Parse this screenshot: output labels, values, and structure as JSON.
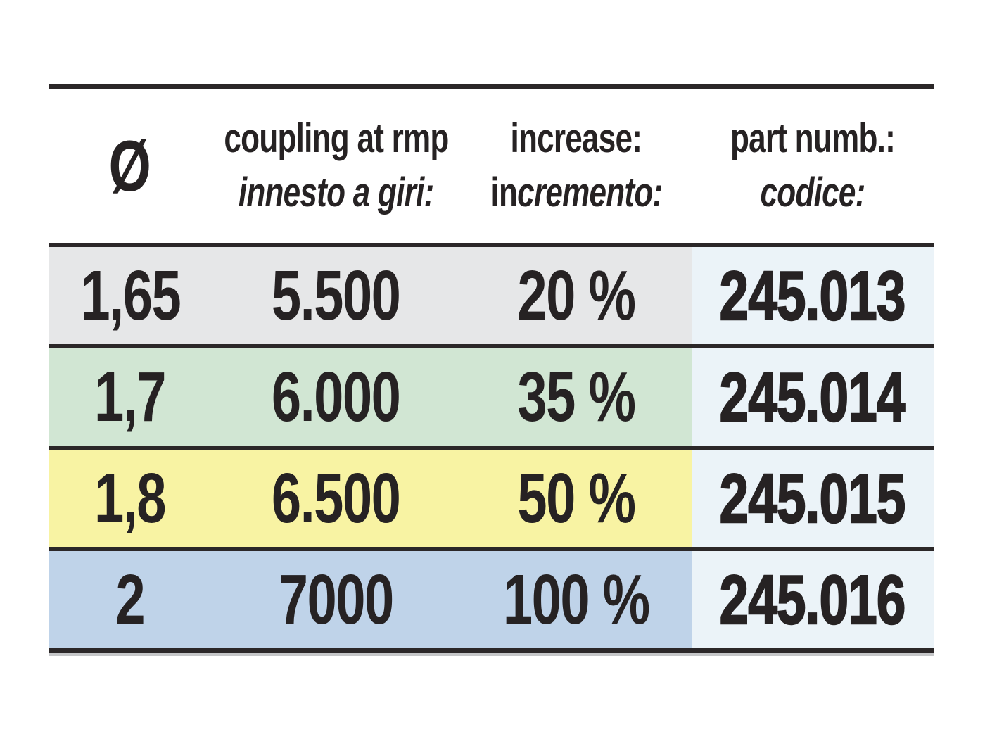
{
  "table": {
    "header": {
      "diameter_symbol": "Ø",
      "coupling_en": "coupling at rmp",
      "coupling_it": "innesto a giri:",
      "increase_en": "increase:",
      "increase_it_prefix": "in",
      "increase_it_rest": "cremento:",
      "partnumber_en": "part numb.:",
      "partnumber_it": "codice:"
    },
    "rows": [
      {
        "diameter": "1,65",
        "coupling": "5.500",
        "increase": "20 %",
        "code": "245.013",
        "color": "#e6e7e8"
      },
      {
        "diameter": "1,7",
        "coupling": "6.000",
        "increase": "35 %",
        "code": "245.014",
        "color": "#d1e6d3"
      },
      {
        "diameter": "1,8",
        "coupling": "6.500",
        "increase": "50 %",
        "code": "245.015",
        "color": "#f8f3a3"
      },
      {
        "diameter": "2",
        "coupling": "7000",
        "increase": "100 %",
        "code": "245.016",
        "color": "#bfd3e9"
      }
    ],
    "colors": {
      "ink": "#262223",
      "rule": "#2b2728",
      "code_column_bg": "#ebf3f8",
      "row_gray": "#e6e7e8",
      "row_green": "#d1e6d3",
      "row_yellow": "#f8f3a3",
      "row_blue": "#bfd3e9"
    }
  }
}
